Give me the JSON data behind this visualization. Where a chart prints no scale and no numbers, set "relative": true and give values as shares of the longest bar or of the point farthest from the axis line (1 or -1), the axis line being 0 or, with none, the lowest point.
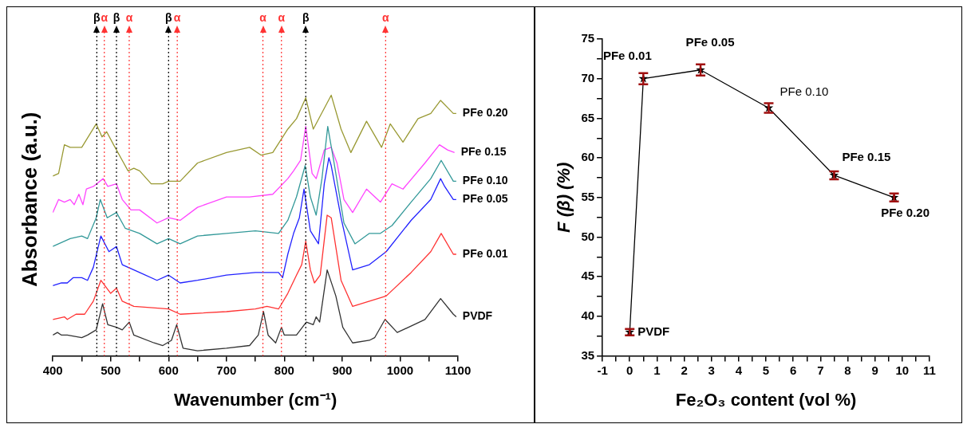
{
  "chart_data": [
    {
      "type": "line",
      "relative": true,
      "xlabel": "Wavenumber (cm⁻¹)",
      "ylabel": "Absorbance (a.u.)",
      "xlim": [
        400,
        1100
      ],
      "xticks": [
        400,
        {
          "value": 450,
          "label": null
        },
        500,
        {
          "value": 550,
          "label": null
        },
        600,
        {
          "value": 650,
          "label": null
        },
        700,
        {
          "value": 750,
          "label": null
        },
        800,
        {
          "value": 850,
          "label": null
        },
        900,
        {
          "value": 950,
          "label": null
        },
        1000,
        {
          "value": 1050,
          "label": null
        },
        1100
      ],
      "marker": "none",
      "series": [
        {
          "name": "PVDF",
          "color": "#333333",
          "x": [
            400,
            408,
            415,
            425,
            450,
            460,
            475,
            486,
            495,
            510,
            520,
            532,
            540,
            575,
            590,
            605,
            614,
            625,
            650,
            700,
            740,
            755,
            764,
            772,
            785,
            795,
            800,
            806,
            821,
            838,
            850,
            855,
            861,
            874,
            889,
            901,
            918,
            947,
            956,
            974,
            995,
            1024,
            1043,
            1070,
            1092,
            1097
          ],
          "values": [
            0.08,
            0.09,
            0.08,
            0.08,
            0.07,
            0.08,
            0.1,
            0.2,
            0.12,
            0.11,
            0.1,
            0.13,
            0.08,
            0.05,
            0.04,
            0.06,
            0.12,
            0.03,
            0.02,
            0.03,
            0.04,
            0.08,
            0.17,
            0.08,
            0.05,
            0.11,
            0.08,
            0.08,
            0.08,
            0.13,
            0.12,
            0.15,
            0.13,
            0.33,
            0.23,
            0.11,
            0.05,
            0.06,
            0.07,
            0.14,
            0.09,
            0.12,
            0.14,
            0.22,
            0.16,
            0.15
          ]
        },
        {
          "name": "PFe 0.01",
          "color": "#ff3333",
          "x": [
            400,
            420,
            425,
            440,
            455,
            470,
            483,
            500,
            510,
            520,
            540,
            600,
            620,
            700,
            750,
            770,
            790,
            806,
            821,
            830,
            837,
            845,
            852,
            862,
            874,
            881,
            898,
            918,
            947,
            976,
            1019,
            1053,
            1071,
            1092,
            1097
          ],
          "values": [
            0.14,
            0.15,
            0.14,
            0.16,
            0.16,
            0.21,
            0.29,
            0.24,
            0.26,
            0.21,
            0.19,
            0.18,
            0.16,
            0.17,
            0.18,
            0.19,
            0.18,
            0.24,
            0.31,
            0.35,
            0.44,
            0.33,
            0.28,
            0.31,
            0.54,
            0.53,
            0.29,
            0.19,
            0.21,
            0.23,
            0.32,
            0.4,
            0.47,
            0.39,
            0.39
          ]
        },
        {
          "name": "PFe 0.05",
          "color": "#2222ff",
          "x": [
            400,
            415,
            425,
            435,
            450,
            460,
            470,
            483,
            497,
            510,
            520,
            550,
            580,
            600,
            620,
            650,
            700,
            750,
            790,
            797,
            806,
            816,
            826,
            834,
            845,
            859,
            869,
            877,
            881,
            898,
            918,
            947,
            976,
            1019,
            1053,
            1070,
            1077,
            1092,
            1097
          ],
          "values": [
            0.27,
            0.28,
            0.28,
            0.3,
            0.3,
            0.29,
            0.34,
            0.46,
            0.4,
            0.42,
            0.35,
            0.32,
            0.29,
            0.31,
            0.28,
            0.29,
            0.31,
            0.32,
            0.32,
            0.3,
            0.39,
            0.47,
            0.53,
            0.64,
            0.48,
            0.43,
            0.66,
            0.76,
            0.73,
            0.53,
            0.33,
            0.35,
            0.4,
            0.52,
            0.6,
            0.68,
            0.65,
            0.6,
            0.6
          ]
        },
        {
          "name": "PFe 0.10",
          "color": "#339999",
          "x": [
            400,
            430,
            450,
            460,
            475,
            482,
            494,
            510,
            525,
            550,
            580,
            600,
            620,
            650,
            700,
            750,
            790,
            806,
            821,
            836,
            845,
            855,
            865,
            875,
            886,
            903,
            922,
            947,
            966,
            986,
            1019,
            1053,
            1071,
            1092,
            1097
          ],
          "values": [
            0.42,
            0.45,
            0.46,
            0.45,
            0.53,
            0.6,
            0.53,
            0.55,
            0.49,
            0.47,
            0.43,
            0.45,
            0.43,
            0.46,
            0.47,
            0.48,
            0.47,
            0.52,
            0.61,
            0.73,
            0.61,
            0.54,
            0.68,
            0.88,
            0.74,
            0.51,
            0.43,
            0.47,
            0.47,
            0.5,
            0.59,
            0.68,
            0.75,
            0.67,
            0.67
          ]
        },
        {
          "name": "PFe 0.15",
          "color": "#ff44ff",
          "x": [
            400,
            410,
            420,
            430,
            437,
            445,
            452,
            458,
            470,
            487,
            495,
            510,
            520,
            535,
            550,
            580,
            600,
            620,
            650,
            700,
            740,
            780,
            806,
            816,
            828,
            837,
            848,
            855,
            869,
            881,
            891,
            903,
            918,
            942,
            966,
            986,
            1005,
            1043,
            1068,
            1082,
            1094
          ],
          "values": [
            0.55,
            0.6,
            0.59,
            0.6,
            0.58,
            0.62,
            0.58,
            0.64,
            0.65,
            0.68,
            0.65,
            0.66,
            0.6,
            0.56,
            0.56,
            0.51,
            0.53,
            0.52,
            0.57,
            0.61,
            0.61,
            0.62,
            0.68,
            0.71,
            0.75,
            0.88,
            0.7,
            0.68,
            0.79,
            0.8,
            0.74,
            0.6,
            0.55,
            0.64,
            0.59,
            0.66,
            0.64,
            0.74,
            0.81,
            0.79,
            0.78
          ]
        },
        {
          "name": "PFe 0.20",
          "color": "#999933",
          "x": [
            400,
            410,
            420,
            430,
            440,
            450,
            475,
            485,
            493,
            505,
            520,
            530,
            540,
            550,
            570,
            590,
            600,
            620,
            650,
            700,
            740,
            760,
            780,
            806,
            821,
            837,
            850,
            881,
            898,
            915,
            942,
            968,
            983,
            1005,
            1031,
            1053,
            1070,
            1092,
            1097
          ],
          "values": [
            0.69,
            0.7,
            0.81,
            0.8,
            0.8,
            0.8,
            0.89,
            0.84,
            0.86,
            0.81,
            0.75,
            0.71,
            0.72,
            0.71,
            0.66,
            0.66,
            0.67,
            0.67,
            0.74,
            0.78,
            0.8,
            0.77,
            0.78,
            0.87,
            0.91,
            0.99,
            0.87,
            1,
            0.87,
            0.78,
            0.9,
            0.8,
            0.89,
            0.82,
            0.91,
            0.93,
            0.98,
            0.93,
            0.93
          ]
        }
      ],
      "ref_lines": [
        {
          "axis": "x",
          "value": 476,
          "label": "β",
          "color": "#000000",
          "line_style": "dotted"
        },
        {
          "axis": "x",
          "value": 489,
          "label": "α",
          "color": "#ff3333",
          "line_style": "dotted"
        },
        {
          "axis": "x",
          "value": 510,
          "label": "β",
          "color": "#000000",
          "line_style": "dotted"
        },
        {
          "axis": "x",
          "value": 532,
          "label": "α",
          "color": "#ff3333",
          "line_style": "dotted"
        },
        {
          "axis": "x",
          "value": 600,
          "label": "β",
          "color": "#000000",
          "line_style": "dotted"
        },
        {
          "axis": "x",
          "value": 615,
          "label": "α",
          "color": "#ff3333",
          "line_style": "dotted"
        },
        {
          "axis": "x",
          "value": 763,
          "label": "α",
          "color": "#ff3333",
          "line_style": "dotted"
        },
        {
          "axis": "x",
          "value": 795,
          "label": "α",
          "color": "#ff3333",
          "line_style": "dotted"
        },
        {
          "axis": "x",
          "value": 837,
          "label": "β",
          "color": "#000000",
          "line_style": "dotted"
        },
        {
          "axis": "x",
          "value": 975,
          "label": "α",
          "color": "#ff3333",
          "line_style": "dotted"
        }
      ]
    },
    {
      "type": "line",
      "xlabel": "Fe₂O₃ content (vol %)",
      "ylabel": "F (β) (%)",
      "xlim": [
        -1,
        11
      ],
      "xticks": [
        -1,
        {
          "value": -0.5,
          "label": null
        },
        0,
        {
          "value": 0.5,
          "label": null
        },
        1,
        {
          "value": 1.5,
          "label": null
        },
        2,
        {
          "value": 2.5,
          "label": null
        },
        3,
        {
          "value": 3.5,
          "label": null
        },
        4,
        {
          "value": 4.5,
          "label": null
        },
        5,
        {
          "value": 5.5,
          "label": null
        },
        6,
        {
          "value": 6.5,
          "label": null
        },
        7,
        {
          "value": 7.5,
          "label": null
        },
        8,
        {
          "value": 8.5,
          "label": null
        },
        9,
        {
          "value": 9.5,
          "label": null
        },
        10,
        {
          "value": 10.5,
          "label": null
        },
        11
      ],
      "ylim": [
        35,
        75
      ],
      "yticks": [
        35,
        {
          "value": 37.5,
          "label": null
        },
        40,
        {
          "value": 42.5,
          "label": null
        },
        45,
        {
          "value": 47.5,
          "label": null
        },
        50,
        {
          "value": 52.5,
          "label": null
        },
        55,
        {
          "value": 57.5,
          "label": null
        },
        60,
        {
          "value": 62.5,
          "label": null
        },
        65,
        {
          "value": 67.5,
          "label": null
        },
        70,
        {
          "value": 72.5,
          "label": null
        },
        75
      ],
      "marker": "star",
      "series": [
        {
          "color": "#000000",
          "x": [
            0,
            0.5,
            2.6,
            5.1,
            7.5,
            9.7
          ],
          "values": [
            38,
            70,
            71.1,
            66.3,
            57.8,
            55
          ],
          "errors": [
            0.4,
            0.7,
            0.7,
            0.6,
            0.5,
            0.5
          ]
        }
      ],
      "annotations": [
        {
          "text": "PVDF",
          "x": 0,
          "y": 38
        },
        {
          "text": "PFe 0.01",
          "x": 0.5,
          "y": 70
        },
        {
          "text": "PFe 0.05",
          "x": 2.6,
          "y": 71.1
        },
        {
          "text": "PFe 0.10",
          "x": 5.1,
          "y": 66.3
        },
        {
          "text": "PFe 0.15",
          "x": 7.5,
          "y": 57.8
        },
        {
          "text": "PFe 0.20",
          "x": 9.7,
          "y": 55
        }
      ]
    }
  ]
}
